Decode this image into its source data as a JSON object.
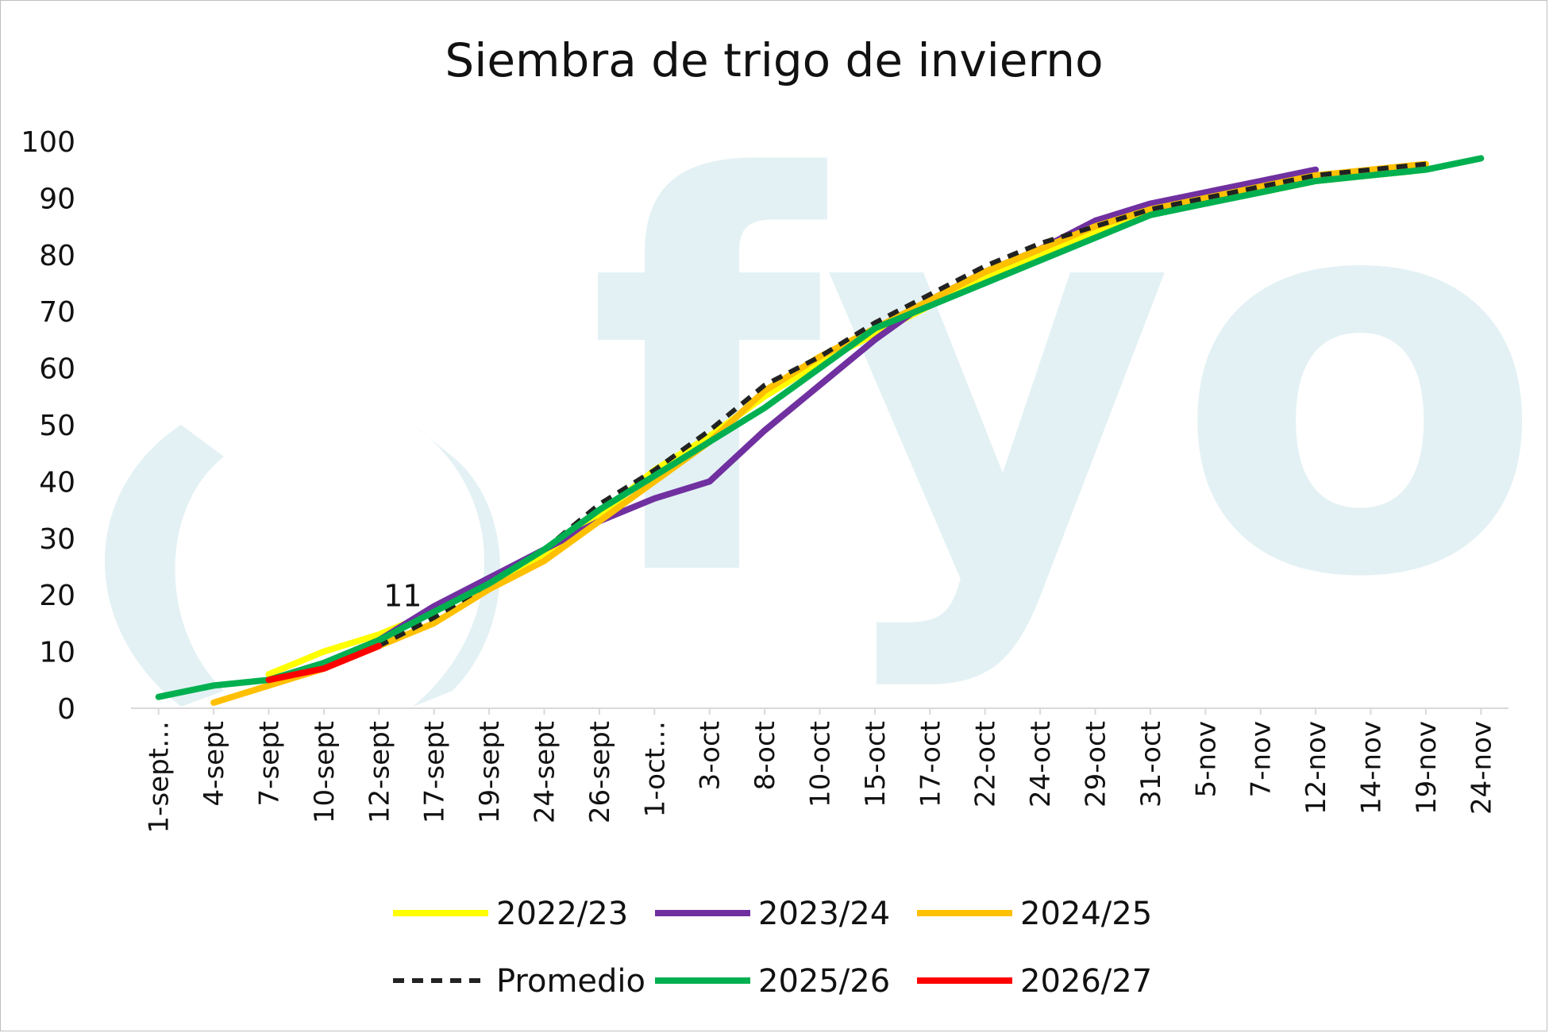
{
  "chart_data": {
    "type": "line",
    "title": "Siembra de trigo de invierno",
    "watermark_text": "fyo",
    "ylim": [
      0,
      100
    ],
    "yticks": [
      0,
      10,
      20,
      30,
      40,
      50,
      60,
      70,
      80,
      90,
      100
    ],
    "categories": [
      "1-sept…",
      "4-sept",
      "7-sept",
      "10-sept",
      "12-sept",
      "17-sept",
      "19-sept",
      "24-sept",
      "26-sept",
      "1-oct…",
      "3-oct",
      "8-oct",
      "10-oct",
      "15-oct",
      "17-oct",
      "22-oct",
      "24-oct",
      "29-oct",
      "31-oct",
      "5-nov",
      "7-nov",
      "12-nov",
      "14-nov",
      "19-nov",
      "24-nov"
    ],
    "grid": false,
    "legend_position": "bottom",
    "series": [
      {
        "name": "2022/23",
        "color": "#ffff00",
        "dash": false,
        "values": [
          null,
          null,
          6,
          10,
          13,
          17,
          22,
          27,
          34,
          42,
          48,
          55,
          61,
          66,
          71,
          76,
          80,
          84,
          87,
          90,
          91,
          93,
          94,
          95,
          null
        ]
      },
      {
        "name": "2023/24",
        "color": "#7030a0",
        "dash": false,
        "values": [
          null,
          null,
          5,
          8,
          12,
          18,
          23,
          28,
          33,
          37,
          40,
          49,
          57,
          65,
          72,
          77,
          81,
          86,
          89,
          91,
          93,
          95,
          null,
          null,
          null
        ]
      },
      {
        "name": "2024/25",
        "color": "#ffc000",
        "dash": false,
        "values": [
          null,
          1,
          4,
          7,
          11,
          15,
          21,
          26,
          33,
          40,
          47,
          56,
          62,
          67,
          72,
          77,
          81,
          85,
          88,
          90,
          92,
          94,
          95,
          96,
          null
        ]
      },
      {
        "name": "Promedio",
        "color": "#222222",
        "dash": true,
        "values": [
          null,
          null,
          5,
          8,
          11,
          16,
          22,
          28,
          36,
          42,
          49,
          57,
          62,
          68,
          73,
          78,
          82,
          85,
          88,
          90,
          92,
          94,
          95,
          96,
          null
        ]
      },
      {
        "name": "2025/26",
        "color": "#00b050",
        "dash": false,
        "values": [
          2,
          4,
          5,
          8,
          12,
          17,
          22,
          28,
          35,
          41,
          47,
          53,
          60,
          67,
          71,
          75,
          79,
          83,
          87,
          89,
          91,
          93,
          94,
          95,
          97
        ]
      },
      {
        "name": "2026/27",
        "color": "#ff0000",
        "dash": false,
        "values": [
          null,
          null,
          5,
          7,
          11,
          null,
          null,
          null,
          null,
          null,
          null,
          null,
          null,
          null,
          null,
          null,
          null,
          null,
          null,
          null,
          null,
          null,
          null,
          null,
          null
        ]
      }
    ],
    "annotations": [
      {
        "text": "11",
        "series": "2026/27",
        "category": "12-sept",
        "value": 11
      }
    ]
  }
}
